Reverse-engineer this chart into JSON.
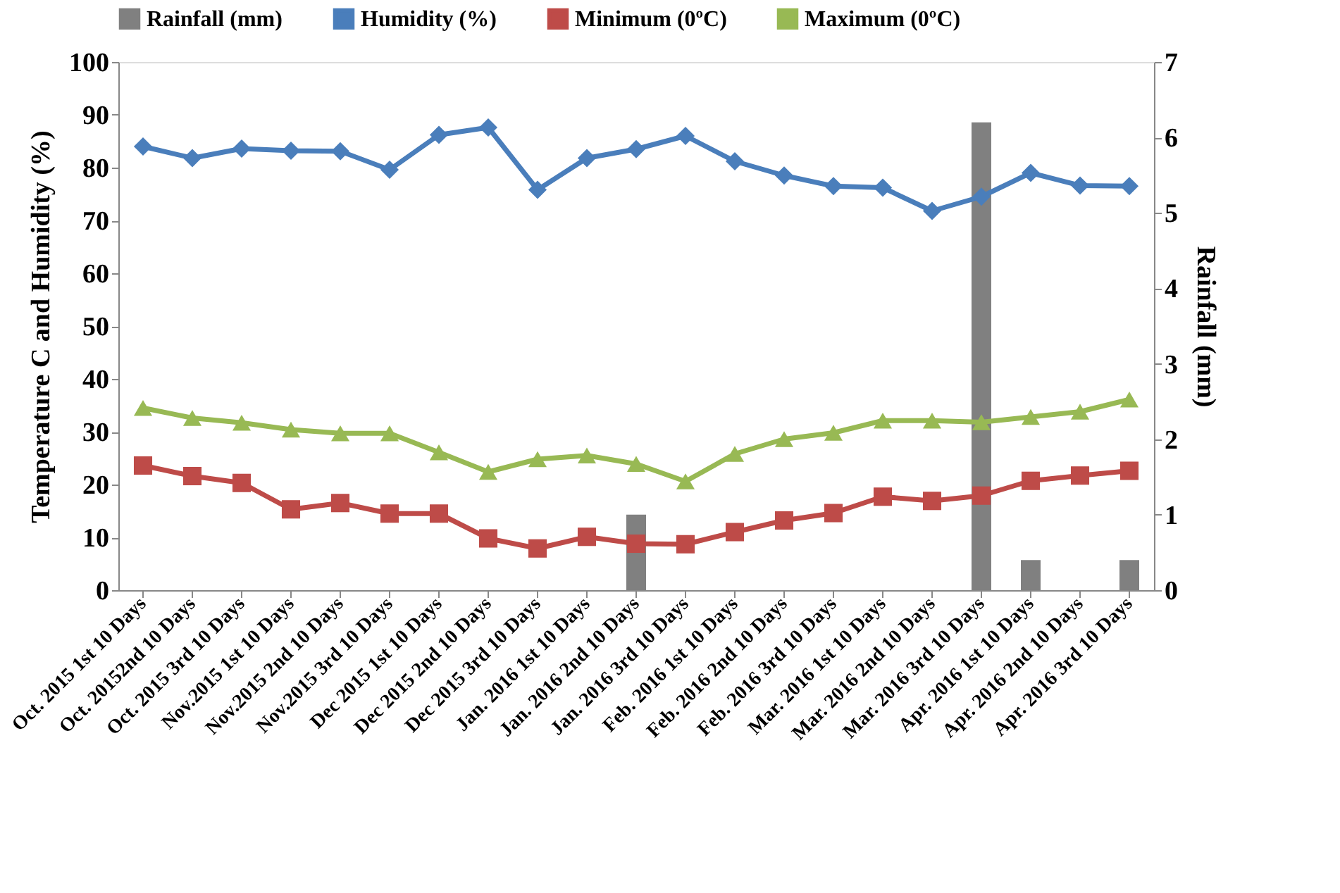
{
  "chart_data": {
    "type": "line",
    "ylabel": "Temperature  C and Humidity (%)",
    "y2label": "Rainfall (mm)",
    "categories": [
      "Oct. 2015 1st 10 Days",
      "Oct. 20152nd 10 Days",
      "Oct. 2015 3rd 10 Days",
      "Nov.2015 1st 10 Days",
      "Nov.2015 2nd 10 Days",
      "Nov.2015 3rd 10 Days",
      "Dec 2015 1st 10 Days",
      "Dec 2015 2nd 10 Days",
      "Dec 2015 3rd 10 Days",
      "Jan. 2016 1st 10 Days",
      "Jan. 2016 2nd 10 Days",
      "Jan. 2016 3rd 10 Days",
      "Feb. 2016 1st 10 Days",
      "Feb. 2016 2nd 10 Days",
      "Feb. 2016 3rd 10 Days",
      "Mar. 2016 1st 10 Days",
      "Mar. 2016 2nd 10 Days",
      "Mar. 2016 3rd 10 Days",
      "Apr. 2016 1st 10 Days",
      "Apr. 2016 2nd 10 Days",
      "Apr. 2016 3rd 10 Days"
    ],
    "series": [
      {
        "name": "Rainfall (mm)",
        "type": "bar",
        "axis": "y2",
        "color": "#808080",
        "values": [
          0,
          0,
          0,
          0,
          0,
          0,
          0,
          0,
          0,
          0,
          1.0,
          0,
          0,
          0,
          0,
          0,
          0,
          6.2,
          0.4,
          0,
          0.4
        ]
      },
      {
        "name": "Humidity (%)",
        "marker": "diamond",
        "color": "#4a7ebb",
        "values": [
          84,
          81.8,
          83.6,
          83.2,
          83.1,
          79.6,
          86.2,
          87.6,
          75.8,
          81.8,
          83.5,
          86,
          81.2,
          78.5,
          76.5,
          76.2,
          71.8,
          74.5,
          79,
          76.6,
          76.5
        ]
      },
      {
        "name": "Minimum (0ºC)",
        "marker": "square",
        "color": "#be4b48",
        "values": [
          23.6,
          21.6,
          20.3,
          15.3,
          16.5,
          14.5,
          14.5,
          9.8,
          7.9,
          10.1,
          8.8,
          8.7,
          11,
          13.2,
          14.6,
          17.7,
          16.9,
          17.9,
          20.7,
          21.7,
          22.6
        ]
      },
      {
        "name": "Maximum (0ºC)",
        "marker": "triangle",
        "color": "#98b954",
        "values": [
          34.5,
          32.6,
          31.7,
          30.4,
          29.7,
          29.7,
          26.1,
          22.4,
          24.8,
          25.5,
          23.9,
          20.6,
          25.8,
          28.6,
          29.8,
          32.1,
          32.1,
          31.8,
          32.8,
          33.8,
          36.1
        ]
      }
    ],
    "ylim": [
      0,
      100
    ],
    "yticks": [
      0,
      10,
      20,
      30,
      40,
      50,
      60,
      70,
      80,
      90,
      100
    ],
    "y2lim": [
      0,
      7
    ],
    "y2ticks": [
      0,
      1,
      2,
      3,
      4,
      5,
      6,
      7
    ],
    "grid": false,
    "legend": "top"
  }
}
